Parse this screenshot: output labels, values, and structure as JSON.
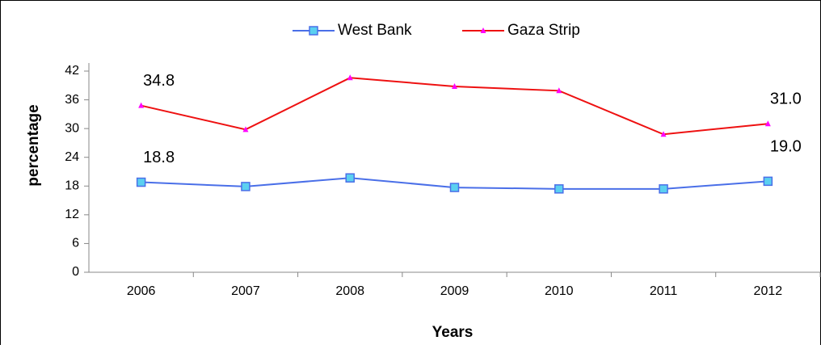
{
  "chart_data": {
    "type": "line",
    "x_label": "Years",
    "y_label": "percentage",
    "categories": [
      "2006",
      "2007",
      "2008",
      "2009",
      "2010",
      "2011",
      "2012"
    ],
    "series": [
      {
        "name": "West Bank",
        "color": "#4a6fe8",
        "marker": "square",
        "marker_color": "#5bd0f0",
        "values": [
          18.8,
          17.9,
          19.7,
          17.7,
          17.4,
          17.4,
          19.0
        ],
        "value_labels": [
          "18.8",
          null,
          null,
          null,
          null,
          null,
          "19.0"
        ]
      },
      {
        "name": "Gaza Strip",
        "color": "#ee1111",
        "marker": "triangle",
        "marker_color": "#ff00ff",
        "values": [
          34.8,
          29.8,
          40.6,
          38.8,
          37.9,
          28.8,
          31.0
        ],
        "value_labels": [
          "34.8",
          null,
          null,
          null,
          null,
          null,
          "31.0"
        ]
      }
    ],
    "ylim": [
      0,
      42
    ],
    "yticks": [
      0,
      6,
      12,
      18,
      24,
      30,
      36,
      42
    ],
    "grid": false,
    "legend": "top"
  }
}
